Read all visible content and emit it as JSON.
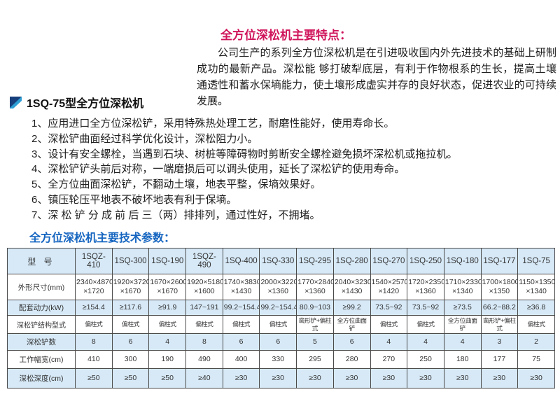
{
  "page": {
    "features_title": "全方位深松机主要特点：",
    "intro": "公司生产的系列全方位深松机是在引进吸收国内外先进技术的基础上研制成功的最新产品。深松能 够打破犁底层，有利于作物根系的生长，提高土壤通透性和蓄水保墒能力，使土壤形成虚实并存的良好状态，促进农业的可持续发展。",
    "model_heading": "1SQ-75型全方位深松机",
    "features": [
      "1、应用进口全方位深松铲，采用特殊热处理工艺，耐磨性能好，使用寿命长。",
      "2、深松铲曲面经过科学优化设计，深松阻力小。",
      "3、设计有安全螺栓，当遇到石块、树桩等障碍物时剪断安全螺栓避免损坏深松机或拖拉机。",
      "4、深松铲铲头前后对称，一端磨损后可以调头使用，延长了深松铲的使用寿命。",
      "5、全方位曲面深松铲，不翻动土壤，地表平整，保墒效果好。",
      "6、镇压轮压平地表不破坏地表有利于保墒。",
      "7、深 松 铲 分 成 前 后 三（两）排排列，通过性好，不拥堵。"
    ],
    "params_title": "全方位深松机主要技术参数："
  },
  "colors": {
    "title_red": "#d0155c",
    "heading_blue": "#1565c0",
    "table_header_bg": "#d7e9f7",
    "table_border": "#4a4a4a",
    "logo_dark_blue": "#173f7c",
    "logo_light_blue": "#2e9fd4"
  },
  "icons": [
    {
      "name": "logo-icon",
      "shape": "square split diagonally, dark navy upper-left triangle and light blue lower-right triangle"
    }
  ],
  "table": {
    "header": [
      "型 号",
      "1SQZ-410",
      "1SQ-300",
      "1SQ-190",
      "1SQZ-490",
      "1SQ-400",
      "1SQ-330",
      "1SQ-295",
      "1SQ-280",
      "1SQ-270",
      "1SQ-250",
      "1SQ-180",
      "1SQ-177",
      "1SQ-75"
    ],
    "rows": [
      {
        "label": "外形尺寸(mm)",
        "values": [
          [
            "2340×4870",
            "×1720"
          ],
          [
            "1920×3720",
            "×1670"
          ],
          [
            "1670×2600",
            "×1670"
          ],
          [
            "1920×5180",
            "×1600"
          ],
          [
            "1740×3830",
            "×1430"
          ],
          [
            "2000×3220",
            "×1360"
          ],
          [
            "1770×2840",
            "×1360"
          ],
          [
            "2040×3230",
            "×1430"
          ],
          [
            "1540×2570",
            "×1420"
          ],
          [
            "1720×2350",
            "×1360"
          ],
          [
            "1710×2330",
            "×1340"
          ],
          [
            "1700×1800",
            "×1350"
          ],
          [
            "1150×1350",
            "×1340"
          ]
        ]
      },
      {
        "label": "配套动力(kW)",
        "values": [
          "≥154.4",
          "≥117.6",
          "≥91.9",
          "147~191",
          "99.2~154.4",
          "99.2~154.4",
          "80.9~103",
          "≥99.2",
          "73.5~92",
          "73.5~92",
          "≥73.5",
          "66.2~88.2",
          "≥36.8"
        ]
      },
      {
        "label": "深松铲结构型式",
        "values": [
          "偏柱式",
          "偏柱式",
          "偏柱式",
          "偏柱式",
          "偏柱式",
          "偏柱式",
          "凿形铲+偏柱式",
          "全方位曲面铲",
          "偏柱式",
          "偏柱式",
          "全方位曲面铲",
          "凿形铲+偏柱式",
          "偏柱式"
        ]
      },
      {
        "label": "深松铲数",
        "values": [
          "8",
          "6",
          "4",
          "8",
          "6",
          "6",
          "5",
          "6",
          "4",
          "4",
          "4",
          "3",
          "2"
        ]
      },
      {
        "label": "工作幅宽(cm)",
        "values": [
          "410",
          "300",
          "190",
          "490",
          "400",
          "330",
          "295",
          "280",
          "270",
          "250",
          "180",
          "177",
          "75"
        ]
      },
      {
        "label": "深松深度(cm)",
        "values": [
          "≥50",
          "≥50",
          "≥50",
          "≥40",
          "≥30",
          "≥30",
          "≥30",
          "≥30",
          "≥30",
          "≥30",
          "≥30",
          "≥30",
          "≥30"
        ]
      }
    ]
  }
}
